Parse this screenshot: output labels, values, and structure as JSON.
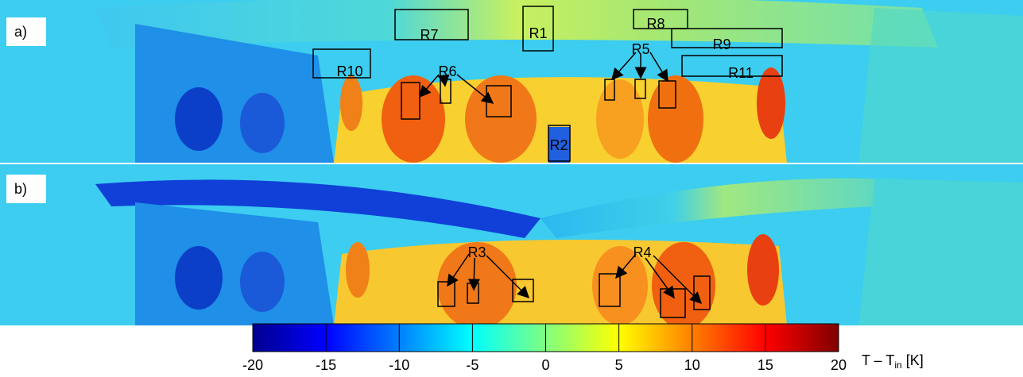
{
  "panels": [
    {
      "label": "a)",
      "regions": [
        "R7",
        "R1",
        "R8",
        "R9",
        "R10",
        "R11",
        "R6",
        "R5",
        "R2"
      ]
    },
    {
      "label": "b)",
      "regions": [
        "R3",
        "R4"
      ]
    }
  ],
  "colorbar": {
    "label_main": "T – T",
    "label_sub": "in",
    "label_unit": "[K]",
    "lim": [
      -20,
      20
    ],
    "ticks": [
      -20,
      -15,
      -10,
      -5,
      0,
      5,
      10,
      15,
      20
    ]
  }
}
